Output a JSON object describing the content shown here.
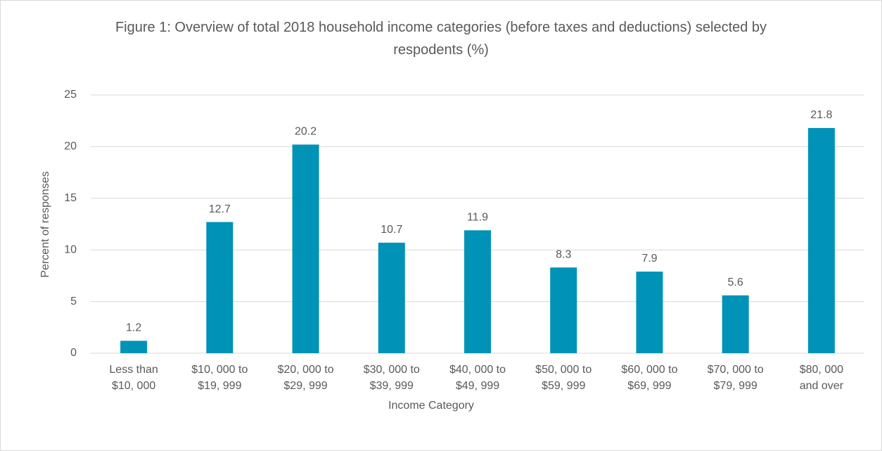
{
  "chart_data": {
    "type": "bar",
    "title": "Figure 1: Overview of total 2018 household income categories (before taxes and deductions) selected by respodents  (%)",
    "x_label": "Income Category",
    "y_label": "Percent of responses",
    "categories": [
      [
        "Less than",
        "$10, 000"
      ],
      [
        "$10, 000 to",
        "$19, 999"
      ],
      [
        "$20, 000 to",
        "$29, 999"
      ],
      [
        "$30, 000 to",
        "$39, 999"
      ],
      [
        "$40, 000 to",
        "$49, 999"
      ],
      [
        "$50, 000 to",
        "$59, 999"
      ],
      [
        "$60, 000 to",
        "$69, 999"
      ],
      [
        "$70, 000 to",
        "$79, 999"
      ],
      [
        "$80, 000",
        "and over"
      ]
    ],
    "values": [
      1.2,
      12.7,
      20.2,
      10.7,
      11.9,
      8.3,
      7.9,
      5.6,
      21.8
    ],
    "color": "#0092b7",
    "ylim": [
      0,
      25
    ],
    "yticks": [
      0,
      5,
      10,
      15,
      20,
      25
    ],
    "grid": true
  }
}
